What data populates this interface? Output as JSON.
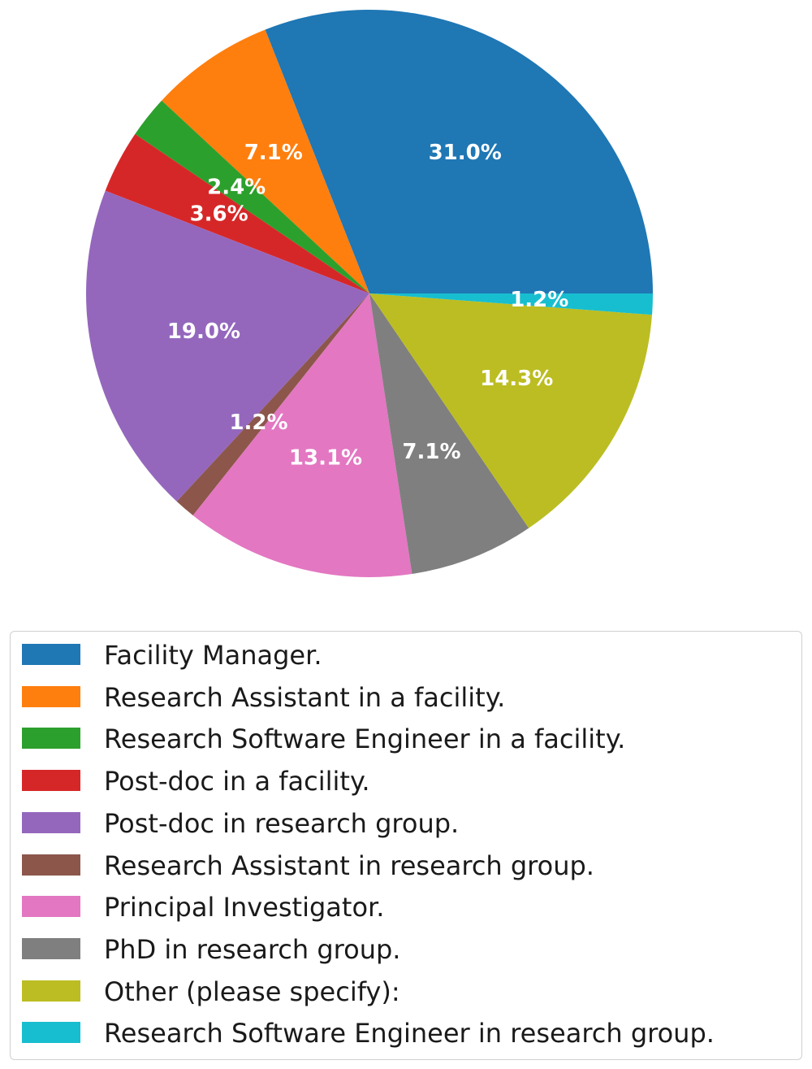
{
  "chart_data": {
    "type": "pie",
    "title": "",
    "slices": [
      {
        "label": "Facility Manager.",
        "value": 31.0,
        "pct_label": "31.0%",
        "color": "#1f77b4"
      },
      {
        "label": "Research Assistant in a facility.",
        "value": 7.1,
        "pct_label": "7.1%",
        "color": "#ff7f0e"
      },
      {
        "label": "Research Software Engineer in a facility.",
        "value": 2.4,
        "pct_label": "2.4%",
        "color": "#2ca02c"
      },
      {
        "label": "Post-doc in a facility.",
        "value": 3.6,
        "pct_label": "3.6%",
        "color": "#d62728"
      },
      {
        "label": "Post-doc in research group.",
        "value": 19.0,
        "pct_label": "19.0%",
        "color": "#9467bd"
      },
      {
        "label": "Research Assistant in research group.",
        "value": 1.2,
        "pct_label": "1.2%",
        "color": "#8c564b"
      },
      {
        "label": "Principal Investigator.",
        "value": 13.1,
        "pct_label": "13.1%",
        "color": "#e377c2"
      },
      {
        "label": "PhD in research group.",
        "value": 7.1,
        "pct_label": "7.1%",
        "color": "#7f7f7f"
      },
      {
        "label": "Other (please specify):",
        "value": 14.3,
        "pct_label": "14.3%",
        "color": "#bcbd22"
      },
      {
        "label": "Research Software Engineer in research group.",
        "value": 1.2,
        "pct_label": "1.2%",
        "color": "#17becf"
      }
    ],
    "start_angle_deg": 0,
    "direction": "counterclockwise",
    "legend_position": "bottom"
  }
}
